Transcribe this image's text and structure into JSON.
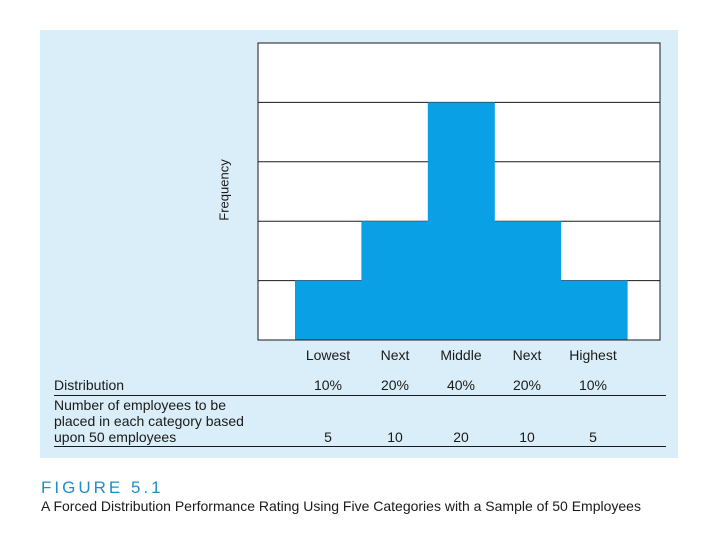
{
  "chart_data": {
    "type": "bar",
    "title": "",
    "xlabel": "",
    "ylabel": "Frequency",
    "categories": [
      "Lowest",
      "Next",
      "Middle",
      "Next",
      "Highest"
    ],
    "values": [
      10,
      20,
      40,
      20,
      10
    ],
    "ylim": [
      0,
      50
    ],
    "grid": true,
    "bar_color": "#0aa0e6"
  },
  "table": {
    "row1_label": "Distribution",
    "row1_values": [
      "10%",
      "20%",
      "40%",
      "20%",
      "10%"
    ],
    "row2_label_lines": [
      "Number of employees to be",
      "placed in each category based",
      "upon 50 employees"
    ],
    "row2_values": [
      "5",
      "10",
      "20",
      "10",
      "5"
    ]
  },
  "figure": {
    "label": "FIGURE 5.1",
    "caption": "A Forced Distribution Performance Rating Using Five Categories with a Sample of 50 Employees"
  }
}
